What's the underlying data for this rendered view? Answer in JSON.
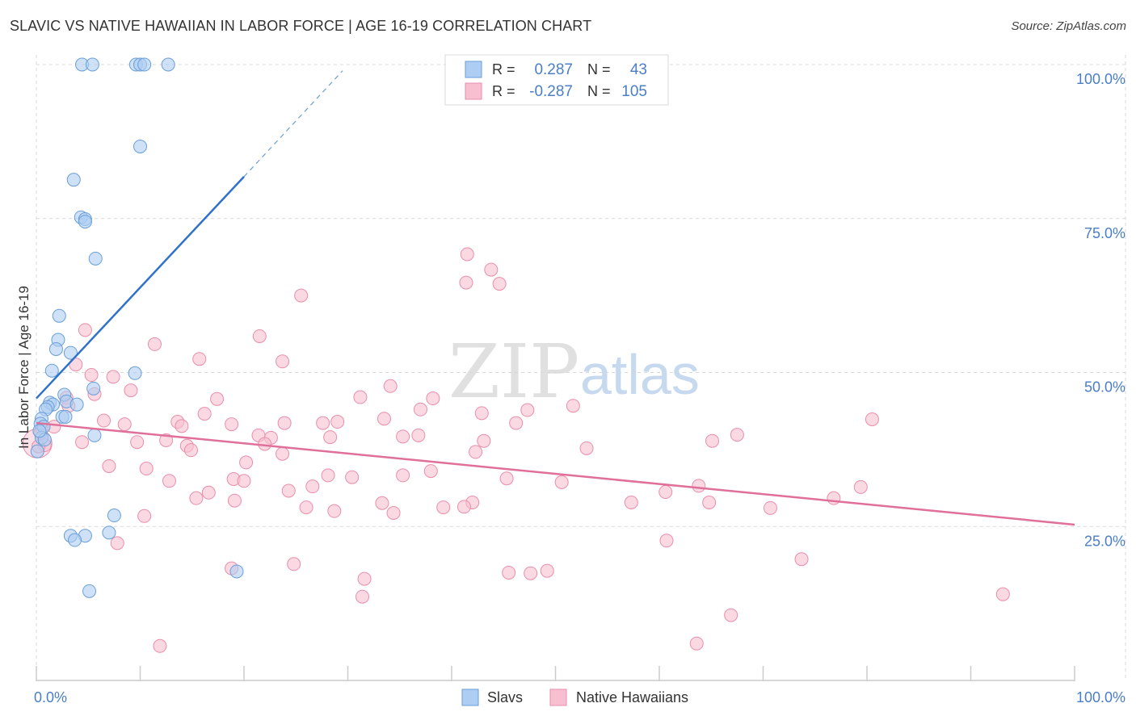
{
  "title": "SLAVIC VS NATIVE HAWAIIAN IN LABOR FORCE | AGE 16-19 CORRELATION CHART",
  "source": "Source: ZipAtlas.com",
  "watermark": {
    "zip": "ZIP",
    "atlas": "atlas"
  },
  "colors": {
    "blue_fill": "#aecdf2",
    "blue_stroke": "#6a9fd8",
    "blue_line": "#2e72cc",
    "pink_fill": "#f7bfd0",
    "pink_stroke": "#ea8eab",
    "pink_line": "#e0709a",
    "axis_text": "#4a7ec8",
    "grid": "#d8d8d8"
  },
  "legend": {
    "r_label": "R =",
    "n_label": "N =",
    "series": [
      {
        "r": "0.287",
        "n": "43"
      },
      {
        "r": "-0.287",
        "n": "105"
      }
    ]
  },
  "chart_data": {
    "type": "scatter",
    "xlabel": "",
    "ylabel": "In Labor Force | Age 16-19",
    "xlim": [
      0,
      100
    ],
    "ylim": [
      0,
      100
    ],
    "x_tick_labels": [
      "0.0%",
      "100.0%"
    ],
    "y_tick_labels": [
      "25.0%",
      "50.0%",
      "75.0%",
      "100.0%"
    ],
    "y_ticks": [
      25,
      50,
      75,
      100
    ],
    "legend_position": "bottom",
    "series": [
      {
        "name": "Slavs",
        "trend": {
          "x_start": 0,
          "y_start": 45.8,
          "x_solid_end": 20,
          "y_solid_end": 81.8,
          "x_dash_end": 29.5,
          "y_dash_end": 99
        },
        "points": [
          [
            4.4,
            100
          ],
          [
            5.4,
            100
          ],
          [
            9.6,
            100
          ],
          [
            10.0,
            100
          ],
          [
            10.4,
            100
          ],
          [
            12.7,
            100
          ],
          [
            10.0,
            86.7
          ],
          [
            3.6,
            81.3
          ],
          [
            4.3,
            75.2
          ],
          [
            4.7,
            74.9
          ],
          [
            4.7,
            74.5
          ],
          [
            5.7,
            68.5
          ],
          [
            2.2,
            59.2
          ],
          [
            2.1,
            55.3
          ],
          [
            1.9,
            53.8
          ],
          [
            3.3,
            53.2
          ],
          [
            1.5,
            50.3
          ],
          [
            9.5,
            49.9
          ],
          [
            5.5,
            47.4
          ],
          [
            2.7,
            46.4
          ],
          [
            1.3,
            45.1
          ],
          [
            2.9,
            45.3
          ],
          [
            1.6,
            44.8
          ],
          [
            3.9,
            44.8
          ],
          [
            1.1,
            44.4
          ],
          [
            0.9,
            44.0
          ],
          [
            2.5,
            42.8
          ],
          [
            2.8,
            42.8
          ],
          [
            0.5,
            42.5
          ],
          [
            0.4,
            41.7
          ],
          [
            0.7,
            41.2
          ],
          [
            5.6,
            39.8
          ],
          [
            0.5,
            39.4
          ],
          [
            0.8,
            39.1
          ],
          [
            7.5,
            26.8
          ],
          [
            7.0,
            24.0
          ],
          [
            3.3,
            23.5
          ],
          [
            4.7,
            23.5
          ],
          [
            3.7,
            22.8
          ],
          [
            19.3,
            17.7
          ],
          [
            5.1,
            14.5
          ],
          [
            0.1,
            37.2
          ],
          [
            0.3,
            40.5
          ]
        ]
      },
      {
        "name": "Native Hawaiians",
        "trend": {
          "x_start": 0,
          "y_start": 41.8,
          "x_end": 100,
          "y_end": 25.3
        },
        "points": [
          [
            41.5,
            69.2
          ],
          [
            43.8,
            66.7
          ],
          [
            41.4,
            64.6
          ],
          [
            44.6,
            64.4
          ],
          [
            25.5,
            62.5
          ],
          [
            4.7,
            56.9
          ],
          [
            21.5,
            55.9
          ],
          [
            11.4,
            54.6
          ],
          [
            23.7,
            51.8
          ],
          [
            15.7,
            52.2
          ],
          [
            3.8,
            51.3
          ],
          [
            5.3,
            49.6
          ],
          [
            7.4,
            49.3
          ],
          [
            9.1,
            47.1
          ],
          [
            34.1,
            47.8
          ],
          [
            5.6,
            46.5
          ],
          [
            2.9,
            45.9
          ],
          [
            17.4,
            45.7
          ],
          [
            31.2,
            46.0
          ],
          [
            38.2,
            45.8
          ],
          [
            51.7,
            44.6
          ],
          [
            3.1,
            44.6
          ],
          [
            37.0,
            44.0
          ],
          [
            47.3,
            43.9
          ],
          [
            42.9,
            43.4
          ],
          [
            16.2,
            43.3
          ],
          [
            33.5,
            42.5
          ],
          [
            80.5,
            42.4
          ],
          [
            6.5,
            42.2
          ],
          [
            13.6,
            42.0
          ],
          [
            8.5,
            41.6
          ],
          [
            23.9,
            41.8
          ],
          [
            29.0,
            42.0
          ],
          [
            18.8,
            41.6
          ],
          [
            27.6,
            41.8
          ],
          [
            46.2,
            41.8
          ],
          [
            14.0,
            41.3
          ],
          [
            1.7,
            41.2
          ],
          [
            0.5,
            41.0
          ],
          [
            36.8,
            39.8
          ],
          [
            35.3,
            39.6
          ],
          [
            21.4,
            39.8
          ],
          [
            22.6,
            39.4
          ],
          [
            28.3,
            39.5
          ],
          [
            67.5,
            39.9
          ],
          [
            12.5,
            39.0
          ],
          [
            43.1,
            38.9
          ],
          [
            65.1,
            38.9
          ],
          [
            4.4,
            38.7
          ],
          [
            9.7,
            38.7
          ],
          [
            22.0,
            38.4
          ],
          [
            0.8,
            38.2
          ],
          [
            14.5,
            38.1
          ],
          [
            14.9,
            37.4
          ],
          [
            53.0,
            37.7
          ],
          [
            23.7,
            36.8
          ],
          [
            42.3,
            37.1
          ],
          [
            20.2,
            35.4
          ],
          [
            7.0,
            34.8
          ],
          [
            10.6,
            34.4
          ],
          [
            38.0,
            34.0
          ],
          [
            28.1,
            33.3
          ],
          [
            35.3,
            33.3
          ],
          [
            30.4,
            33.0
          ],
          [
            45.3,
            32.8
          ],
          [
            12.8,
            32.4
          ],
          [
            19.0,
            32.7
          ],
          [
            20.0,
            32.4
          ],
          [
            50.6,
            32.2
          ],
          [
            79.4,
            31.4
          ],
          [
            63.8,
            31.6
          ],
          [
            26.6,
            31.5
          ],
          [
            24.3,
            30.8
          ],
          [
            16.6,
            30.5
          ],
          [
            60.6,
            30.6
          ],
          [
            15.4,
            29.6
          ],
          [
            19.1,
            29.2
          ],
          [
            76.8,
            29.6
          ],
          [
            33.3,
            28.8
          ],
          [
            42.0,
            28.9
          ],
          [
            57.3,
            28.9
          ],
          [
            64.8,
            28.9
          ],
          [
            26.0,
            28.1
          ],
          [
            39.2,
            28.1
          ],
          [
            41.2,
            28.2
          ],
          [
            70.7,
            28.0
          ],
          [
            28.7,
            27.5
          ],
          [
            34.4,
            27.2
          ],
          [
            10.4,
            26.7
          ],
          [
            60.7,
            22.7
          ],
          [
            7.8,
            22.3
          ],
          [
            73.7,
            19.7
          ],
          [
            18.8,
            18.2
          ],
          [
            24.8,
            18.9
          ],
          [
            49.2,
            17.8
          ],
          [
            45.5,
            17.5
          ],
          [
            47.6,
            17.4
          ],
          [
            31.6,
            16.5
          ],
          [
            93.1,
            14.0
          ],
          [
            31.4,
            13.6
          ],
          [
            66.9,
            10.6
          ],
          [
            63.6,
            6.0
          ],
          [
            11.9,
            5.6
          ],
          [
            0.2,
            38.0
          ],
          [
            0.4,
            40.2
          ]
        ]
      }
    ]
  }
}
